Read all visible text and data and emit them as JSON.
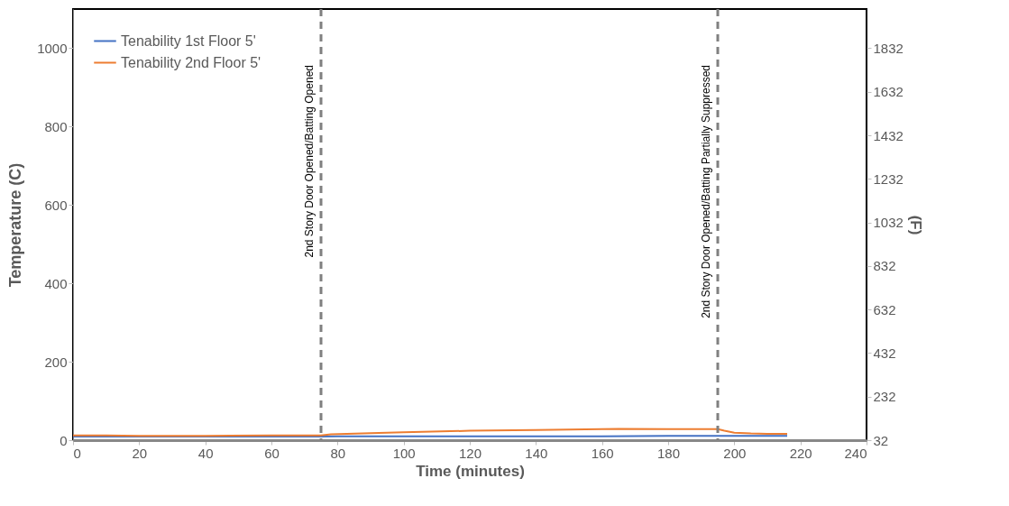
{
  "chart_data": {
    "type": "line",
    "xlabel": "Time (minutes)",
    "ylabel": "Temperature (C)",
    "y2label": "(F)",
    "xlim": [
      0,
      240
    ],
    "xticks": [
      0,
      20,
      40,
      60,
      80,
      100,
      120,
      140,
      160,
      180,
      200,
      220,
      240
    ],
    "ylim": [
      0,
      1100
    ],
    "yticks": [
      0,
      200,
      400,
      600,
      800,
      1000
    ],
    "y2lim": [
      32,
      2012
    ],
    "y2ticks": [
      32,
      232,
      432,
      632,
      832,
      1032,
      1232,
      1432,
      1632,
      1832
    ],
    "series": [
      {
        "name": "Tenability 1st Floor 5'",
        "color": "#4472c4",
        "x": [
          0,
          20,
          40,
          60,
          75,
          80,
          100,
          120,
          140,
          160,
          180,
          195,
          200,
          216
        ],
        "values": [
          9,
          9,
          9,
          9,
          9,
          10,
          10,
          10,
          10,
          10,
          11,
          11,
          11,
          11
        ]
      },
      {
        "name": "Tenability 2nd Floor 5'",
        "color": "#ed7d31",
        "x": [
          0,
          10,
          20,
          40,
          60,
          75,
          78,
          90,
          100,
          120,
          140,
          160,
          165,
          180,
          190,
          195,
          197,
          200,
          205,
          210,
          216
        ],
        "values": [
          12,
          12,
          11,
          11,
          12,
          12,
          15,
          18,
          20,
          24,
          26,
          28,
          29,
          28,
          28,
          28,
          24,
          19,
          17,
          16,
          16
        ]
      }
    ],
    "ref_lines": [
      {
        "axis": "x",
        "value": 75,
        "label": "2nd Story Door Opened/Batting Opened",
        "color": "#808080",
        "line_style": "dashed"
      },
      {
        "axis": "x",
        "value": 195,
        "label": "2nd Story Door Opened/Batting Partially Suppressed",
        "color": "#808080",
        "line_style": "dashed"
      }
    ],
    "legend": "top left",
    "grid": false,
    "marker": "none",
    "line_style": "solid"
  }
}
